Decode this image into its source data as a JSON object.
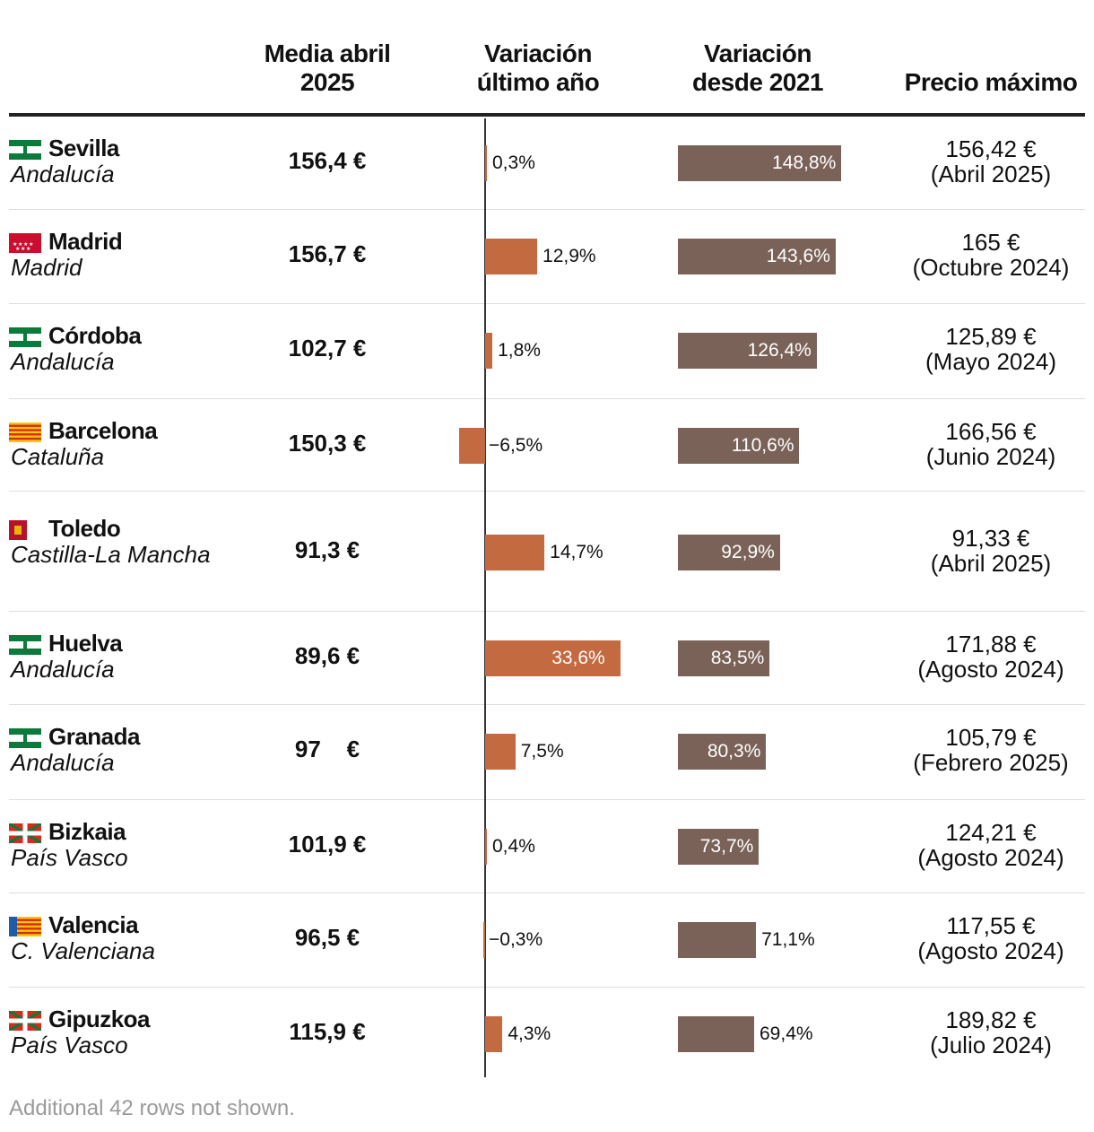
{
  "chart_data": {
    "type": "table",
    "columns": [
      "",
      "Media abril 2025",
      "Variación último año",
      "Variación desde 2021",
      "Precio máximo"
    ],
    "column_lines": [
      [
        "Media abril",
        "2025"
      ],
      [
        "Variación",
        "último año"
      ],
      [
        "Variación",
        "desde 2021"
      ],
      [
        "Precio máximo"
      ]
    ],
    "var_ultimo_range": [
      -6.5,
      33.6
    ],
    "var_2021_range": [
      0,
      148.8
    ],
    "rows": [
      {
        "city": "Sevilla",
        "region": "Andalucía",
        "flag": "andalucia-flag",
        "media": "156,4 €",
        "var_ultimo": 0.3,
        "var_ultimo_label": "0,3%",
        "var_2021": 148.8,
        "var_2021_label": "148,8%",
        "precio": "156,42 €",
        "precio_fecha": "(Abril 2025)"
      },
      {
        "city": "Madrid",
        "region": "Madrid",
        "flag": "madrid-flag",
        "media": "156,7 €",
        "var_ultimo": 12.9,
        "var_ultimo_label": "12,9%",
        "var_2021": 143.6,
        "var_2021_label": "143,6%",
        "precio": "165 €",
        "precio_fecha": "(Octubre 2024)"
      },
      {
        "city": "Córdoba",
        "region": "Andalucía",
        "flag": "andalucia-flag",
        "media": "102,7 €",
        "var_ultimo": 1.8,
        "var_ultimo_label": "1,8%",
        "var_2021": 126.4,
        "var_2021_label": "126,4%",
        "precio": "125,89 €",
        "precio_fecha": "(Mayo 2024)"
      },
      {
        "city": "Barcelona",
        "region": "Cataluña",
        "flag": "cataluna-flag",
        "media": "150,3 €",
        "var_ultimo": -6.5,
        "var_ultimo_label": "−6,5%",
        "var_2021": 110.6,
        "var_2021_label": "110,6%",
        "precio": "166,56 €",
        "precio_fecha": "(Junio 2024)"
      },
      {
        "city": "Toledo",
        "region": "Castilla-La Mancha",
        "flag": "castilla-la-mancha-flag",
        "media": "91,3 €",
        "var_ultimo": 14.7,
        "var_ultimo_label": "14,7%",
        "var_2021": 92.9,
        "var_2021_label": "92,9%",
        "precio": "91,33 €",
        "precio_fecha": "(Abril 2025)"
      },
      {
        "city": "Huelva",
        "region": "Andalucía",
        "flag": "andalucia-flag",
        "media": "89,6 €",
        "var_ultimo": 33.6,
        "var_ultimo_label": "33,6%",
        "var_2021": 83.5,
        "var_2021_label": "83,5%",
        "precio": "171,88 €",
        "precio_fecha": "(Agosto 2024)"
      },
      {
        "city": "Granada",
        "region": "Andalucía",
        "flag": "andalucia-flag",
        "media": "97    €",
        "var_ultimo": 7.5,
        "var_ultimo_label": "7,5%",
        "var_2021": 80.3,
        "var_2021_label": "80,3%",
        "precio": "105,79 €",
        "precio_fecha": "(Febrero 2025)"
      },
      {
        "city": "Bizkaia",
        "region": "País Vasco",
        "flag": "pais-vasco-flag",
        "media": "101,9 €",
        "var_ultimo": 0.4,
        "var_ultimo_label": "0,4%",
        "var_2021": 73.7,
        "var_2021_label": "73,7%",
        "precio": "124,21 €",
        "precio_fecha": "(Agosto 2024)"
      },
      {
        "city": "Valencia",
        "region": "C. Valenciana",
        "flag": "valencia-flag",
        "media": "96,5 €",
        "var_ultimo": -0.3,
        "var_ultimo_label": "−0,3%",
        "var_2021": 71.1,
        "var_2021_label": "71,1%",
        "precio": "117,55 €",
        "precio_fecha": "(Agosto 2024)"
      },
      {
        "city": "Gipuzkoa",
        "region": "País Vasco",
        "flag": "pais-vasco-flag",
        "media": "115,9 €",
        "var_ultimo": 4.3,
        "var_ultimo_label": "4,3%",
        "var_2021": 69.4,
        "var_2021_label": "69,4%",
        "precio": "189,82 €",
        "precio_fecha": "(Julio 2024)"
      }
    ]
  },
  "footer": "Additional 42 rows not shown.",
  "colors": {
    "var_ultimo_bar": "#c46a41",
    "var_2021_bar": "#7a6258",
    "axis": "#333333",
    "rule": "#222222",
    "footer": "#9a9a9a"
  }
}
